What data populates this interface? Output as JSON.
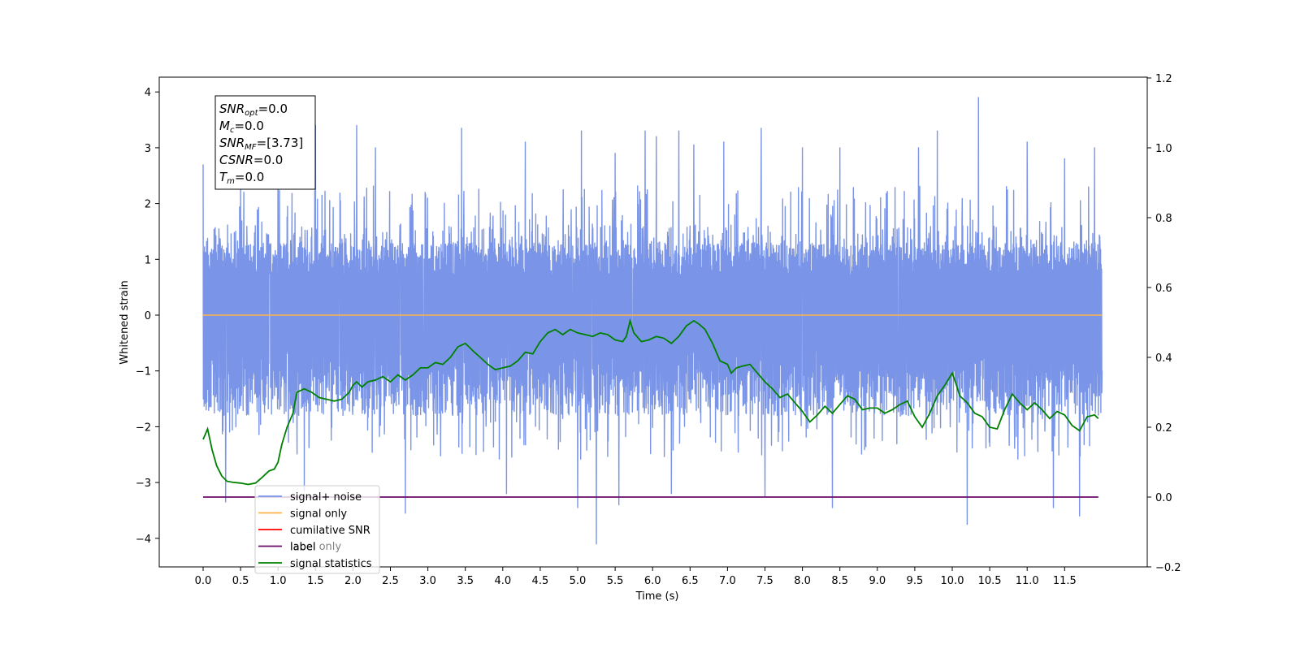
{
  "chart_data": {
    "type": "line",
    "xlabel": "Time (s)",
    "ylabel": "Whitened strain",
    "xlim": [
      -0.58,
      12.6
    ],
    "ylim_left": [
      -4.4,
      4.4
    ],
    "ylim_right": [
      -0.2,
      1.2
    ],
    "x_ticks": [
      "0.0",
      "0.5",
      "1.0",
      "1.5",
      "2.0",
      "2.5",
      "3.0",
      "3.5",
      "4.0",
      "4.5",
      "5.0",
      "5.5",
      "6.0",
      "6.5",
      "7.0",
      "7.5",
      "8.0",
      "8.5",
      "9.0",
      "9.5",
      "10.0",
      "10.5",
      "11.0",
      "11.5"
    ],
    "y_ticks_left": [
      "4",
      "3",
      "2",
      "1",
      "0",
      "−1",
      "−2",
      "−3",
      "−4"
    ],
    "y_ticks_right": [
      "1.2",
      "1.0",
      "0.8",
      "0.6",
      "0.4",
      "0.2",
      "0.0",
      "−0.2"
    ],
    "legend_position": "lower-left",
    "legend": [
      "signal+ noise",
      "signal only",
      "cumilative SNR",
      "label",
      "signal statistics"
    ],
    "legend_partial_text": "label only",
    "info_box": [
      {
        "base": "SNR",
        "sub": "opt",
        "value": "=0.0"
      },
      {
        "base": "M",
        "sub": "c",
        "value": "=0.0"
      },
      {
        "base": "SNR",
        "sub": "MF",
        "value": "=[3.73]"
      },
      {
        "base": "CSNR",
        "sub": "",
        "value": "=0.0"
      },
      {
        "base": "T",
        "sub": "m",
        "value": "=0.0"
      }
    ],
    "series": [
      {
        "name": "signal+ noise",
        "color": "#7a95e8",
        "axis": "left",
        "x_range": [
          0.0,
          12.0
        ],
        "envelope": {
          "core_range": [
            -1.8,
            1.3
          ],
          "typical_peak_max": 2.3,
          "typical_trough_min": -2.6,
          "spikes_up": [
            [
              0.0,
              2.7
            ],
            [
              0.5,
              2.5
            ],
            [
              1.0,
              3.1
            ],
            [
              1.5,
              3.4
            ],
            [
              2.05,
              3.4
            ],
            [
              2.3,
              3.0
            ],
            [
              3.45,
              3.35
            ],
            [
              4.3,
              3.1
            ],
            [
              5.05,
              3.3
            ],
            [
              5.5,
              2.9
            ],
            [
              5.9,
              3.3
            ],
            [
              6.05,
              3.2
            ],
            [
              6.35,
              3.3
            ],
            [
              6.55,
              3.05
            ],
            [
              6.95,
              3.1
            ],
            [
              7.45,
              3.35
            ],
            [
              8.0,
              3.0
            ],
            [
              8.5,
              3.0
            ],
            [
              9.55,
              3.0
            ],
            [
              9.8,
              3.3
            ],
            [
              10.35,
              3.9
            ],
            [
              11.0,
              3.1
            ],
            [
              11.5,
              2.8
            ],
            [
              11.9,
              3.0
            ]
          ],
          "spikes_down": [
            [
              0.3,
              -3.35
            ],
            [
              1.35,
              -3.15
            ],
            [
              2.7,
              -3.55
            ],
            [
              4.05,
              -3.2
            ],
            [
              5.0,
              -3.45
            ],
            [
              5.25,
              -4.1
            ],
            [
              5.55,
              -3.4
            ],
            [
              6.25,
              -3.2
            ],
            [
              7.5,
              -3.25
            ],
            [
              8.4,
              -3.45
            ],
            [
              10.2,
              -3.75
            ],
            [
              11.35,
              -3.45
            ],
            [
              11.7,
              -3.6
            ]
          ]
        }
      },
      {
        "name": "signal only",
        "color": "#ffb347",
        "axis": "left",
        "x": [
          0.0,
          12.0
        ],
        "y": [
          0.0,
          0.0
        ]
      },
      {
        "name": "cumilative SNR",
        "color": "#ff0000",
        "axis": "right",
        "x": [],
        "y": []
      },
      {
        "name": "label",
        "color": "#6a0d6a",
        "axis": "right",
        "x": [
          0.0,
          11.95
        ],
        "y": [
          0.0,
          0.0
        ]
      },
      {
        "name": "signal statistics",
        "color": "#008000",
        "axis": "right",
        "x": [
          0.0,
          0.06,
          0.12,
          0.18,
          0.25,
          0.32,
          0.4,
          0.5,
          0.6,
          0.7,
          0.78,
          0.88,
          0.95,
          1.0,
          1.05,
          1.12,
          1.2,
          1.25,
          1.35,
          1.45,
          1.55,
          1.65,
          1.75,
          1.85,
          1.95,
          2.0,
          2.05,
          2.12,
          2.2,
          2.3,
          2.4,
          2.5,
          2.6,
          2.7,
          2.8,
          2.9,
          3.0,
          3.1,
          3.2,
          3.3,
          3.4,
          3.5,
          3.55,
          3.62,
          3.7,
          3.8,
          3.9,
          4.0,
          4.1,
          4.2,
          4.3,
          4.4,
          4.5,
          4.6,
          4.7,
          4.8,
          4.9,
          5.0,
          5.1,
          5.2,
          5.3,
          5.4,
          5.5,
          5.6,
          5.65,
          5.7,
          5.75,
          5.85,
          5.95,
          6.05,
          6.15,
          6.25,
          6.35,
          6.45,
          6.55,
          6.62,
          6.7,
          6.8,
          6.9,
          7.0,
          7.05,
          7.12,
          7.2,
          7.3,
          7.4,
          7.5,
          7.6,
          7.7,
          7.8,
          7.9,
          8.0,
          8.1,
          8.2,
          8.3,
          8.4,
          8.5,
          8.6,
          8.7,
          8.8,
          8.9,
          9.0,
          9.1,
          9.2,
          9.3,
          9.4,
          9.5,
          9.6,
          9.7,
          9.8,
          9.9,
          10.0,
          10.05,
          10.1,
          10.2,
          10.3,
          10.4,
          10.5,
          10.6,
          10.7,
          10.8,
          10.9,
          11.0,
          11.1,
          11.2,
          11.3,
          11.4,
          11.5,
          11.6,
          11.7,
          11.8,
          11.9,
          11.95
        ],
        "y": [
          0.165,
          0.195,
          0.135,
          0.09,
          0.06,
          0.045,
          0.042,
          0.04,
          0.036,
          0.04,
          0.055,
          0.075,
          0.08,
          0.1,
          0.15,
          0.2,
          0.24,
          0.3,
          0.31,
          0.3,
          0.285,
          0.28,
          0.275,
          0.28,
          0.3,
          0.32,
          0.33,
          0.315,
          0.33,
          0.335,
          0.345,
          0.33,
          0.35,
          0.335,
          0.35,
          0.37,
          0.37,
          0.385,
          0.38,
          0.4,
          0.43,
          0.44,
          0.43,
          0.415,
          0.4,
          0.38,
          0.365,
          0.37,
          0.375,
          0.39,
          0.415,
          0.41,
          0.445,
          0.47,
          0.48,
          0.465,
          0.48,
          0.47,
          0.465,
          0.46,
          0.47,
          0.465,
          0.45,
          0.445,
          0.46,
          0.505,
          0.47,
          0.445,
          0.45,
          0.46,
          0.455,
          0.44,
          0.46,
          0.49,
          0.505,
          0.495,
          0.48,
          0.44,
          0.39,
          0.38,
          0.355,
          0.37,
          0.375,
          0.38,
          0.355,
          0.33,
          0.31,
          0.285,
          0.295,
          0.27,
          0.245,
          0.215,
          0.235,
          0.26,
          0.24,
          0.265,
          0.29,
          0.28,
          0.25,
          0.255,
          0.255,
          0.24,
          0.25,
          0.265,
          0.275,
          0.23,
          0.2,
          0.24,
          0.29,
          0.32,
          0.355,
          0.325,
          0.29,
          0.27,
          0.24,
          0.23,
          0.2,
          0.195,
          0.25,
          0.295,
          0.27,
          0.25,
          0.27,
          0.25,
          0.225,
          0.245,
          0.235,
          0.205,
          0.19,
          0.23,
          0.235,
          0.225
        ]
      }
    ]
  }
}
